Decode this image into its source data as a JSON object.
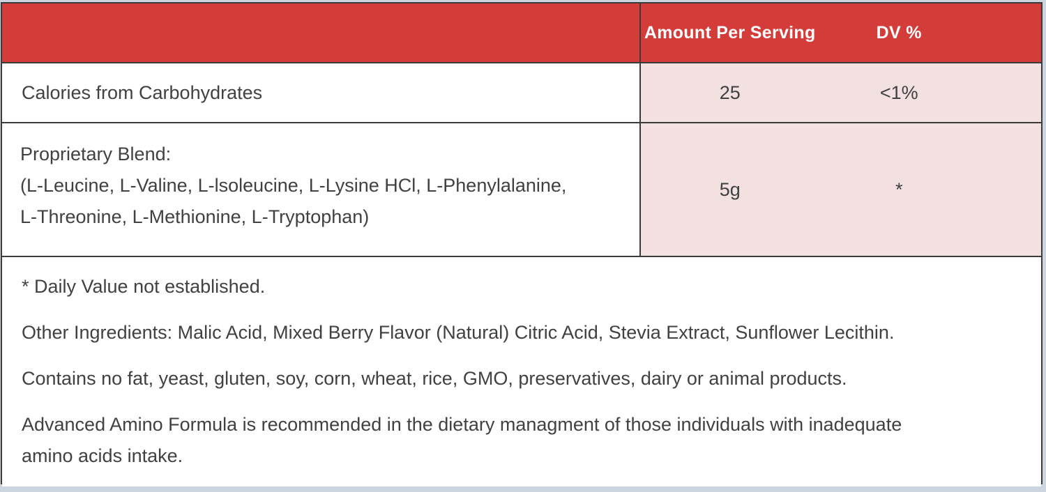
{
  "label": {
    "header": {
      "amount_col": "Amount Per Serving",
      "dv_col": "DV %"
    },
    "rows": [
      {
        "name": "Calories from Carbohydrates",
        "amount": "25",
        "dv": "<1%"
      },
      {
        "name": "Proprietary Blend:\n(L-Leucine, L-Valine, L-lsoleucine, L-Lysine HCl, L-Phenylalanine,\nL-Threonine, L-Methionine, L-Tryptophan)",
        "amount": "5g",
        "dv": "*"
      }
    ],
    "notes": [
      "* Daily Value not established.",
      "Other Ingredients: Malic Acid, Mixed Berry Flavor (Natural) Citric Acid, Stevia Extract, Sunflower Lecithin.",
      "Contains no fat, yeast, gluten, soy, corn, wheat, rice, GMO, preservatives, dairy or animal products.",
      "Advanced Amino Formula is recommended in the dietary managment of those individuals with inadequate\namino acids intake."
    ],
    "colors": {
      "header_bg": "#d43c3a",
      "header_text": "#ffffff",
      "value_cell_bg": "#f3e0e1",
      "grid_border": "#3b3b3b",
      "body_text": "#3f4142",
      "page_bg": "#ccd6e1"
    }
  }
}
